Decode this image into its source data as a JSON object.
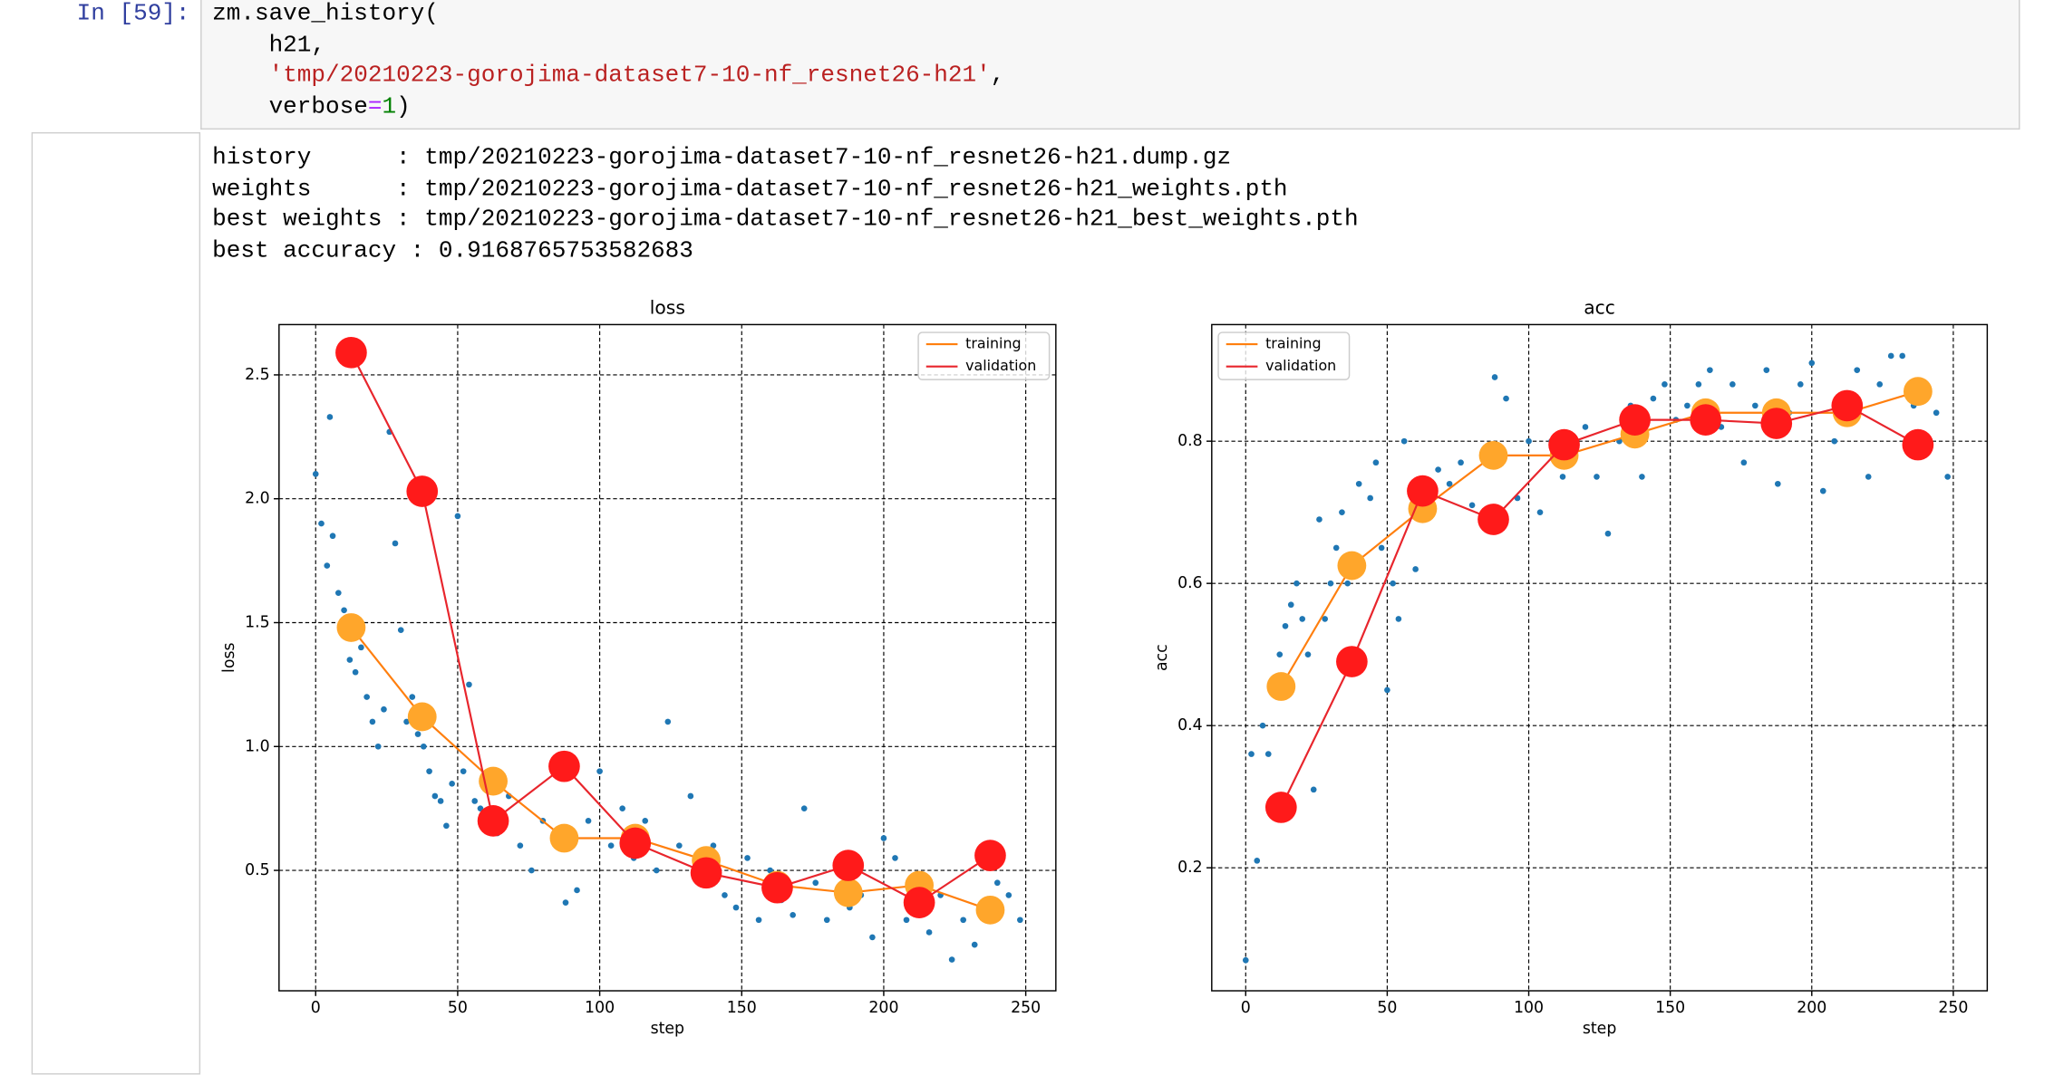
{
  "notebook": {
    "input_prompt": "In [59]:",
    "code": [
      [
        {
          "text": "zm.save_history("
        }
      ],
      [
        {
          "text": "    h21,"
        }
      ],
      [
        {
          "text": "    "
        },
        {
          "text": "'tmp/20210223-gorojima-dataset7-10-nf_resnet26-h21'",
          "kind": "string"
        },
        {
          "text": ","
        }
      ],
      [
        {
          "text": "    verbose"
        },
        {
          "text": "=",
          "kind": "operator"
        },
        {
          "text": "1",
          "kind": "number"
        },
        {
          "text": ")"
        }
      ]
    ],
    "output": [
      "history      : tmp/20210223-gorojima-dataset7-10-nf_resnet26-h21.dump.gz",
      "weights      : tmp/20210223-gorojima-dataset7-10-nf_resnet26-h21_weights.pth",
      "best weights : tmp/20210223-gorojima-dataset7-10-nf_resnet26-h21_best_weights.pth",
      "best accuracy : 0.9168765753582683"
    ]
  },
  "chart_data": [
    {
      "type": "line",
      "title": "loss",
      "xlabel": "step",
      "ylabel": "loss",
      "xlim": [
        -12.9,
        260.6
      ],
      "ylim": [
        0.014,
        2.703
      ],
      "xticks": [
        0,
        50,
        100,
        150,
        200,
        250
      ],
      "yticks": [
        0.5,
        {
          "value": 1,
          "label": "1.0"
        },
        1.5,
        {
          "value": 2,
          "label": "2.0"
        },
        2.5
      ],
      "grid": true,
      "legend": "upper right",
      "scatter": {
        "color": "#1f77b4",
        "x": [
          0,
          2,
          4,
          5,
          6,
          8,
          10,
          12,
          14,
          16,
          18,
          20,
          22,
          24,
          26,
          28,
          30,
          32,
          34,
          36,
          38,
          40,
          42,
          44,
          46,
          48,
          50,
          52,
          54,
          56,
          58,
          60,
          64,
          68,
          72,
          76,
          80,
          84,
          88,
          92,
          96,
          100,
          104,
          108,
          112,
          116,
          120,
          124,
          128,
          132,
          136,
          140,
          144,
          148,
          152,
          156,
          160,
          164,
          168,
          172,
          176,
          180,
          184,
          188,
          192,
          196,
          200,
          204,
          208,
          212,
          216,
          220,
          224,
          228,
          232,
          236,
          240,
          244,
          248
        ],
        "y": [
          2.1,
          1.9,
          1.73,
          2.33,
          1.85,
          1.62,
          1.55,
          1.35,
          1.3,
          1.4,
          1.2,
          1.1,
          1.0,
          1.15,
          2.27,
          1.82,
          1.47,
          1.1,
          1.2,
          1.05,
          1.0,
          0.9,
          0.8,
          0.78,
          0.68,
          0.85,
          1.93,
          0.9,
          1.25,
          0.78,
          0.75,
          0.7,
          0.65,
          0.8,
          0.6,
          0.5,
          0.7,
          0.65,
          0.37,
          0.42,
          0.7,
          0.9,
          0.6,
          0.75,
          0.55,
          0.7,
          0.5,
          1.1,
          0.6,
          0.8,
          0.45,
          0.6,
          0.4,
          0.35,
          0.55,
          0.3,
          0.5,
          0.38,
          0.32,
          0.75,
          0.45,
          0.3,
          0.5,
          0.35,
          0.4,
          0.23,
          0.63,
          0.55,
          0.3,
          0.35,
          0.25,
          0.4,
          0.14,
          0.3,
          0.2,
          0.3,
          0.45,
          0.4,
          0.3
        ]
      },
      "series": [
        {
          "name": "training",
          "color": "#ff7f0e",
          "marker_color": "#ffa62b",
          "x": [
            12.5,
            37.5,
            62.5,
            87.5,
            112.5,
            137.5,
            162.5,
            187.5,
            212.5,
            237.5
          ],
          "values": [
            1.48,
            1.12,
            0.86,
            0.63,
            0.63,
            0.54,
            0.44,
            0.41,
            0.44,
            0.34
          ]
        },
        {
          "name": "validation",
          "color": "#e8252c",
          "marker_color": "#ff1a1a",
          "x": [
            12.5,
            37.5,
            62.5,
            87.5,
            112.5,
            137.5,
            162.5,
            187.5,
            212.5,
            237.5
          ],
          "values": [
            2.59,
            2.03,
            0.7,
            0.92,
            0.61,
            0.49,
            0.43,
            0.52,
            0.37,
            0.56
          ]
        }
      ]
    },
    {
      "type": "line",
      "title": "acc",
      "xlabel": "step",
      "ylabel": "acc",
      "xlim": [
        -12,
        262
      ],
      "ylim": [
        0.027,
        0.964
      ],
      "xticks": [
        0,
        50,
        100,
        150,
        200,
        250
      ],
      "yticks": [
        0.2,
        0.4,
        0.6,
        0.8
      ],
      "grid": true,
      "legend": "upper left",
      "scatter": {
        "color": "#1f77b4",
        "x": [
          0,
          2,
          4,
          6,
          8,
          10,
          12,
          14,
          16,
          18,
          20,
          22,
          24,
          26,
          28,
          30,
          32,
          34,
          36,
          40,
          44,
          46,
          48,
          50,
          52,
          54,
          56,
          60,
          64,
          68,
          72,
          76,
          80,
          84,
          88,
          92,
          96,
          100,
          104,
          108,
          112,
          116,
          120,
          124,
          128,
          132,
          136,
          140,
          144,
          148,
          152,
          156,
          160,
          164,
          168,
          172,
          176,
          180,
          184,
          188,
          192,
          196,
          200,
          204,
          208,
          212,
          216,
          220,
          224,
          228,
          232,
          236,
          240,
          244,
          248
        ],
        "y": [
          0.07,
          0.36,
          0.21,
          0.4,
          0.36,
          0.45,
          0.5,
          0.54,
          0.57,
          0.6,
          0.55,
          0.5,
          0.31,
          0.69,
          0.55,
          0.6,
          0.65,
          0.7,
          0.6,
          0.74,
          0.72,
          0.77,
          0.65,
          0.45,
          0.6,
          0.55,
          0.8,
          0.62,
          0.72,
          0.76,
          0.74,
          0.77,
          0.71,
          0.78,
          0.89,
          0.86,
          0.72,
          0.8,
          0.7,
          0.8,
          0.75,
          0.78,
          0.82,
          0.75,
          0.67,
          0.8,
          0.85,
          0.75,
          0.86,
          0.88,
          0.83,
          0.85,
          0.88,
          0.9,
          0.82,
          0.88,
          0.77,
          0.85,
          0.9,
          0.74,
          0.84,
          0.88,
          0.91,
          0.73,
          0.8,
          0.85,
          0.9,
          0.75,
          0.88,
          0.92,
          0.92,
          0.85,
          0.88,
          0.84,
          0.75
        ]
      },
      "series": [
        {
          "name": "training",
          "color": "#ff7f0e",
          "marker_color": "#ffa62b",
          "x": [
            12.5,
            37.5,
            62.5,
            87.5,
            112.5,
            137.5,
            162.5,
            187.5,
            212.5,
            237.5
          ],
          "values": [
            0.455,
            0.625,
            0.705,
            0.78,
            0.78,
            0.81,
            0.84,
            0.84,
            0.84,
            0.87
          ]
        },
        {
          "name": "validation",
          "color": "#e8252c",
          "marker_color": "#ff1a1a",
          "x": [
            12.5,
            37.5,
            62.5,
            87.5,
            112.5,
            137.5,
            162.5,
            187.5,
            212.5,
            237.5
          ],
          "values": [
            0.285,
            0.49,
            0.73,
            0.69,
            0.795,
            0.83,
            0.83,
            0.825,
            0.85,
            0.795
          ]
        }
      ]
    }
  ]
}
